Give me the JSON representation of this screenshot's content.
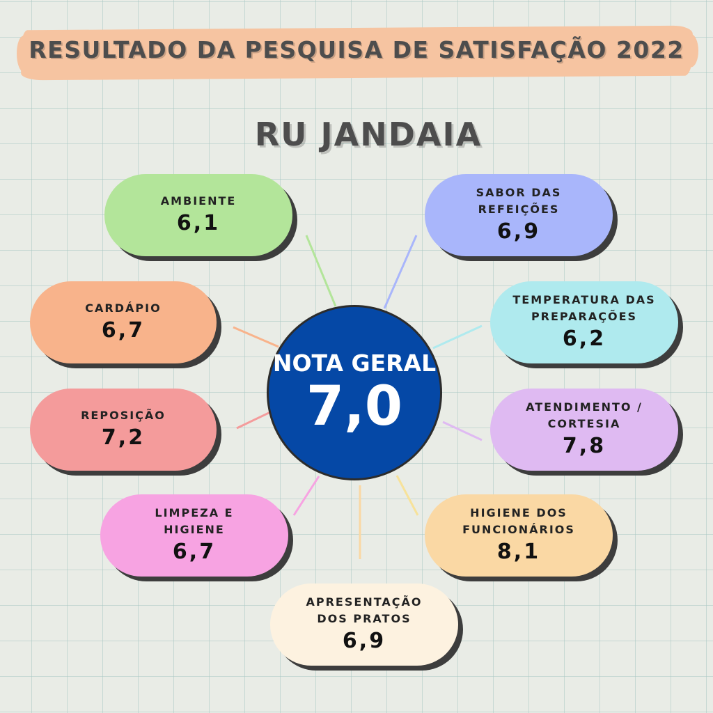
{
  "title": "RESULTADO DA PESQUISA DE SATISFAÇÃO 2022",
  "subtitle": "RU JANDAIA",
  "center": {
    "label": "NOTA GERAL",
    "score": "7,0",
    "color": "#0548a6"
  },
  "categories": {
    "ambiente": {
      "label": "AMBIENTE",
      "score": "6,1",
      "color": "#b3e59a"
    },
    "sabor": {
      "label": "SABOR DAS REFEIÇÕES",
      "score": "6,9",
      "color": "#a9b6fb"
    },
    "cardapio": {
      "label": "CARDÁPIO",
      "score": "6,7",
      "color": "#f8b38b"
    },
    "temperatura": {
      "label_line1": "TEMPERATURA DAS",
      "label_line2": "PREPARAÇÕES",
      "score": "6,2",
      "color": "#afeaee"
    },
    "reposicao": {
      "label": "REPOSIÇÃO",
      "score": "7,2",
      "color": "#f49b9b"
    },
    "atendimento": {
      "label_line1": "ATENDIMENTO /",
      "label_line2": "CORTESIA",
      "score": "7,8",
      "color": "#dfbaf2"
    },
    "limpeza": {
      "label_line1": "LIMPEZA E",
      "label_line2": "HIGIENE",
      "score": "6,7",
      "color": "#f7a3e2"
    },
    "higiene_func": {
      "label_line1": "HIGIENE DOS",
      "label_line2": "FUNCIONÁRIOS",
      "score": "8,1",
      "color": "#fad8a4"
    },
    "apresentacao": {
      "label_line1": "APRESENTAÇÃO",
      "label_line2": "DOS PRATOS",
      "score": "6,9",
      "color": "#fdf2e0"
    }
  }
}
